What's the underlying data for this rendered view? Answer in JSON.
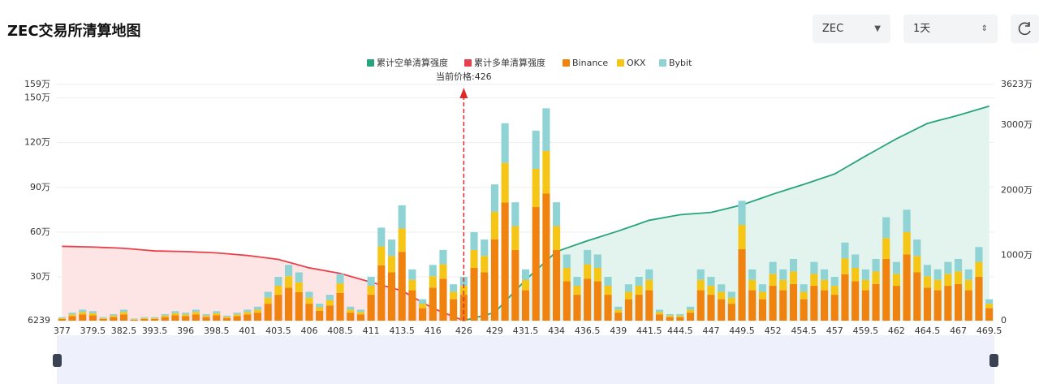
{
  "controls": {
    "symbol": "ZEC",
    "period": "1天"
  },
  "chart_data": {
    "type": "bar",
    "title": "ZEC交易所清算地图",
    "annotation": {
      "text": "当前价格:426",
      "x": 426
    },
    "categories": [
      377,
      null,
      null,
      379.5,
      null,
      null,
      382.5,
      null,
      null,
      393.5,
      null,
      null,
      396,
      null,
      null,
      398.5,
      null,
      null,
      401,
      null,
      null,
      403.5,
      null,
      null,
      406,
      null,
      null,
      408.5,
      null,
      null,
      411,
      null,
      null,
      413.5,
      null,
      null,
      416,
      null,
      null,
      426,
      null,
      null,
      429,
      null,
      null,
      431.5,
      null,
      null,
      434,
      null,
      null,
      436.5,
      null,
      null,
      439,
      null,
      null,
      441.5,
      null,
      null,
      444.5,
      null,
      null,
      447,
      null,
      null,
      449.5,
      null,
      null,
      452,
      null,
      null,
      454.5,
      null,
      null,
      457,
      null,
      null,
      459.5,
      null,
      null,
      462,
      null,
      null,
      464.5,
      null,
      null,
      467,
      null,
      null,
      469.5
    ],
    "ylim": [
      6239,
      1590000
    ],
    "yticks": [
      6239,
      {
        "value": 300000,
        "label": "30万"
      },
      {
        "value": 600000,
        "label": "60万"
      },
      {
        "value": 900000,
        "label": "90万"
      },
      {
        "value": 1200000,
        "label": "120万"
      },
      {
        "value": 1500000,
        "label": "150万"
      },
      {
        "value": 1590000,
        "label": "159万"
      }
    ],
    "y2lim": [
      0,
      36230000
    ],
    "y2ticks": [
      0,
      {
        "value": 10000000,
        "label": "1000万"
      },
      {
        "value": 20000000,
        "label": "2000万"
      },
      {
        "value": 30000000,
        "label": "3000万"
      },
      {
        "value": 36230000,
        "label": "3623万"
      }
    ],
    "grid": true,
    "series": [
      {
        "name": "累计空单清算强度",
        "type": "area",
        "axis": "y2",
        "color": "#27a37e",
        "fill": "#e2f4ed",
        "values": [
          null,
          null,
          null,
          null,
          null,
          null,
          null,
          null,
          null,
          null,
          null,
          null,
          null,
          null,
          null,
          null,
          null,
          null,
          null,
          null,
          null,
          null,
          null,
          null,
          null,
          null,
          null,
          null,
          null,
          null,
          null,
          null,
          null,
          null,
          null,
          null,
          null,
          null,
          null,
          0,
          420000,
          830000,
          1250000,
          2920000,
          4580000,
          6250000,
          7700000,
          9150000,
          10600000,
          11150000,
          11700000,
          12250000,
          12750000,
          13250000,
          13750000,
          14300000,
          14850000,
          15400000,
          15680000,
          15970000,
          16250000,
          16370000,
          16480000,
          16600000,
          16980000,
          17370000,
          17750000,
          18300000,
          18850000,
          19400000,
          19900000,
          20400000,
          20900000,
          21430000,
          21970000,
          22500000,
          23420000,
          24330000,
          25250000,
          26130000,
          27020000,
          27900000,
          28680000,
          29470000,
          30250000,
          30670000,
          31080000,
          31500000,
          31970000,
          32430000,
          32900000
        ]
      },
      {
        "name": "累计多单清算强度",
        "type": "area",
        "axis": "y2",
        "color": "#e8414b",
        "fill": "#fde4e5",
        "values": [
          11400000,
          11370000,
          11330000,
          11300000,
          11230000,
          11170000,
          11100000,
          10970000,
          10830000,
          10700000,
          10670000,
          10630000,
          10600000,
          10530000,
          10470000,
          10400000,
          10270000,
          10130000,
          10000000,
          9800000,
          9600000,
          9400000,
          8970000,
          8530000,
          8100000,
          7820000,
          7530000,
          7250000,
          6800000,
          6350000,
          5900000,
          5470000,
          5030000,
          4600000,
          3700000,
          2800000,
          1900000,
          1270000,
          630000,
          0,
          null,
          null,
          null,
          null,
          null,
          null,
          null,
          null,
          null,
          null,
          null,
          null,
          null,
          null,
          null,
          null,
          null,
          null,
          null,
          null,
          null,
          null,
          null,
          null,
          null,
          null,
          null,
          null,
          null,
          null,
          null,
          null,
          null,
          null,
          null,
          null,
          null,
          null,
          null,
          null,
          null,
          null,
          null,
          null,
          null,
          null,
          null,
          null,
          null,
          null,
          null
        ]
      },
      {
        "name": "Binance",
        "type": "bar",
        "color": "#f0820f",
        "values": [
          18000,
          36000,
          48000,
          42000,
          18000,
          30000,
          48000,
          12000,
          18000,
          18000,
          30000,
          42000,
          36000,
          48000,
          30000,
          42000,
          24000,
          36000,
          48000,
          60000,
          120000,
          180000,
          228000,
          198000,
          120000,
          72000,
          108000,
          192000,
          60000,
          48000,
          180000,
          378000,
          330000,
          468000,
          210000,
          90000,
          228000,
          288000,
          150000,
          180000,
          360000,
          330000,
          552000,
          798000,
          480000,
          210000,
          768000,
          858000,
          480000,
          270000,
          180000,
          288000,
          270000,
          180000,
          60000,
          150000,
          180000,
          210000,
          48000,
          30000,
          30000,
          60000,
          210000,
          180000,
          150000,
          120000,
          486000,
          210000,
          150000,
          240000,
          210000,
          252000,
          150000,
          240000,
          210000,
          180000,
          318000,
          270000,
          210000,
          252000,
          420000,
          240000,
          450000,
          330000,
          228000,
          210000,
          240000,
          252000,
          210000,
          300000,
          90000
        ]
      },
      {
        "name": "OKX",
        "type": "bar",
        "color": "#f6c616",
        "values": [
          6000,
          12000,
          16000,
          14000,
          6000,
          10000,
          16000,
          4000,
          6000,
          6000,
          10000,
          14000,
          12000,
          16000,
          10000,
          14000,
          8000,
          12000,
          16000,
          20000,
          40000,
          60000,
          76000,
          66000,
          40000,
          24000,
          36000,
          64000,
          20000,
          16000,
          60000,
          126000,
          110000,
          156000,
          70000,
          30000,
          76000,
          96000,
          50000,
          60000,
          120000,
          110000,
          184000,
          266000,
          160000,
          70000,
          256000,
          286000,
          160000,
          90000,
          60000,
          96000,
          90000,
          60000,
          20000,
          50000,
          60000,
          70000,
          16000,
          10000,
          10000,
          20000,
          70000,
          60000,
          50000,
          40000,
          162000,
          70000,
          50000,
          80000,
          70000,
          84000,
          50000,
          80000,
          70000,
          60000,
          106000,
          90000,
          70000,
          84000,
          140000,
          80000,
          150000,
          110000,
          76000,
          70000,
          80000,
          84000,
          70000,
          100000,
          30000
        ]
      },
      {
        "name": "Bybit",
        "type": "bar",
        "color": "#8fd3d5",
        "values": [
          6000,
          12000,
          16000,
          14000,
          6000,
          10000,
          16000,
          4000,
          6000,
          6000,
          10000,
          14000,
          12000,
          16000,
          10000,
          14000,
          8000,
          12000,
          16000,
          20000,
          40000,
          60000,
          76000,
          66000,
          40000,
          24000,
          36000,
          64000,
          20000,
          16000,
          60000,
          126000,
          110000,
          156000,
          70000,
          30000,
          76000,
          96000,
          50000,
          60000,
          120000,
          110000,
          184000,
          266000,
          160000,
          70000,
          256000,
          286000,
          160000,
          90000,
          60000,
          96000,
          90000,
          60000,
          20000,
          50000,
          60000,
          70000,
          16000,
          10000,
          10000,
          20000,
          70000,
          60000,
          50000,
          40000,
          162000,
          70000,
          50000,
          80000,
          70000,
          84000,
          50000,
          80000,
          70000,
          60000,
          106000,
          90000,
          70000,
          84000,
          140000,
          80000,
          150000,
          110000,
          76000,
          70000,
          80000,
          84000,
          70000,
          100000,
          30000
        ]
      }
    ]
  }
}
